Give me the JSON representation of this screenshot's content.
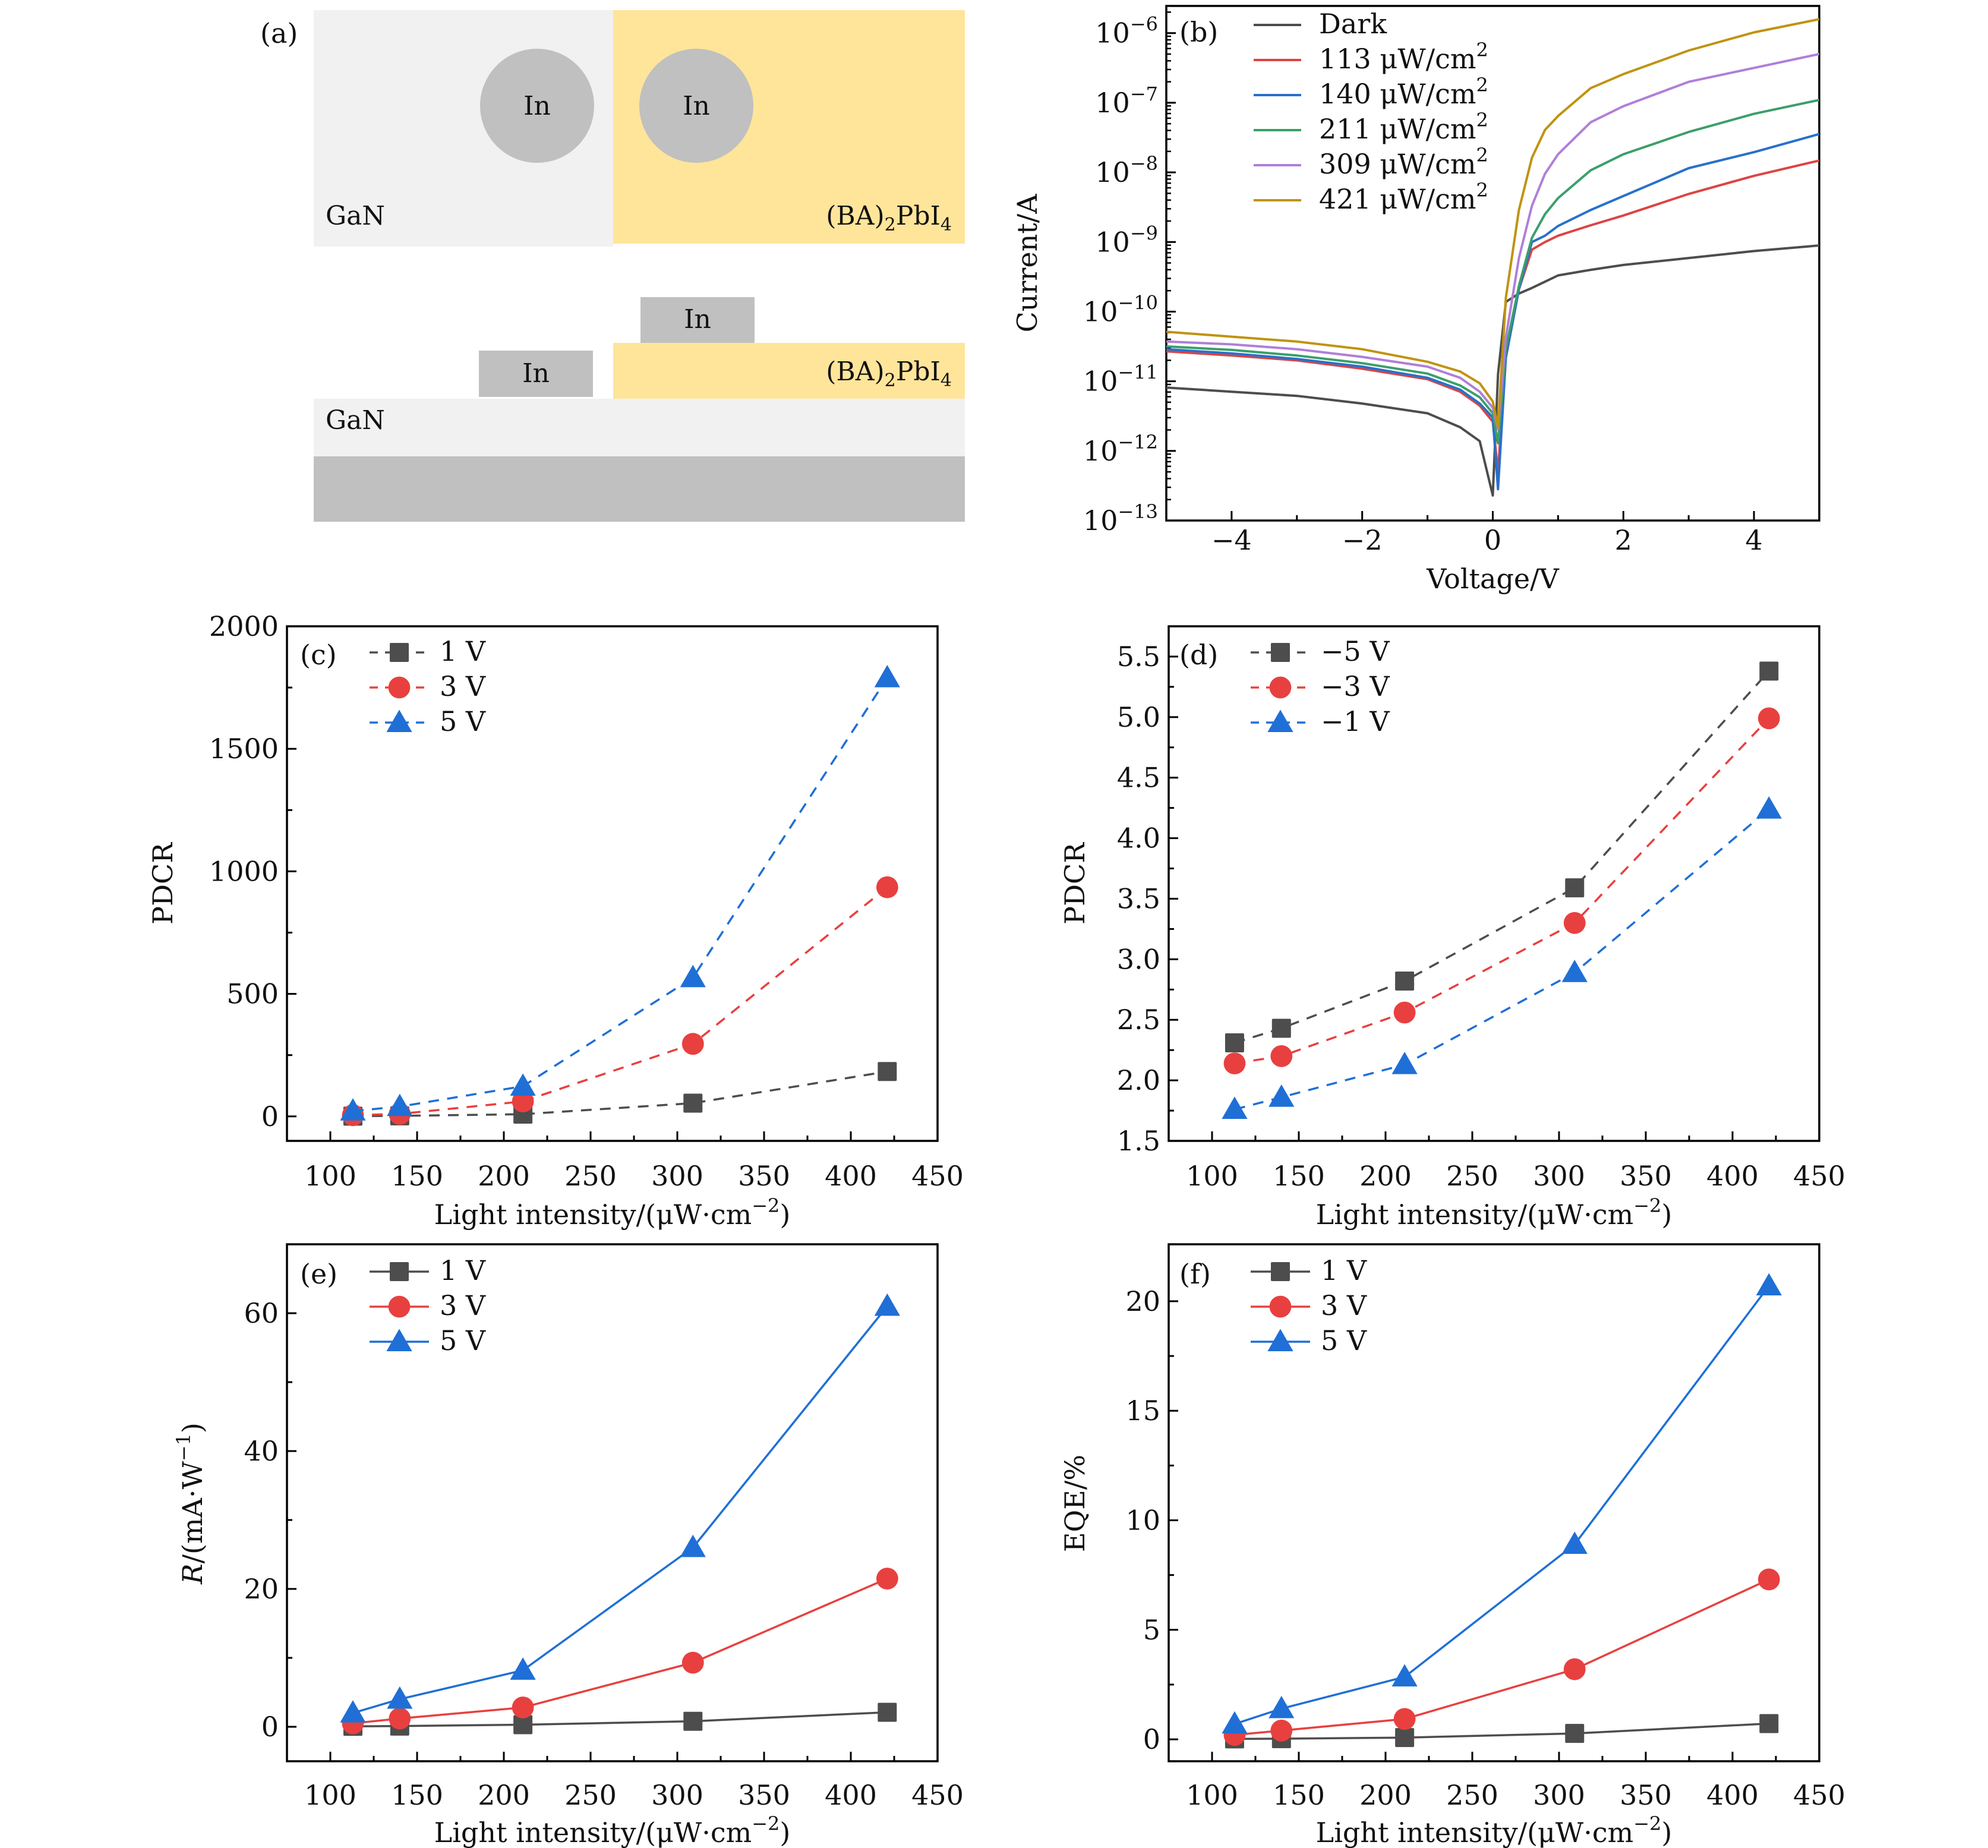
{
  "figure": {
    "panel_a": {
      "label": "(a)",
      "top_view": {
        "substrate_label": "GaN",
        "film_label": "(BA)",
        "film_sub": "2",
        "film_label2": "PbI",
        "film_sub2": "4",
        "electrode_labels": [
          "In",
          "In"
        ]
      },
      "side_view": {
        "substrate_label": "GaN",
        "film_label": "(BA)",
        "film_sub": "2",
        "film_label2": "PbI",
        "film_sub2": "4",
        "electrode_labels": [
          "In",
          "In"
        ]
      },
      "colors": {
        "gan": "#f1f1f1",
        "perovskite": "#ffe59a",
        "indium": "#c0c0c0",
        "base": "#c0c0c0"
      }
    }
  },
  "chart_data": [
    {
      "id": "b",
      "label": "(b)",
      "type": "line",
      "xlabel": "Voltage/V",
      "ylabel": "Current/A",
      "yscale": "log",
      "xlim": [
        -5,
        5
      ],
      "ylim_log10": [
        -13,
        -5.61
      ],
      "xticks": [
        -4,
        -2,
        0,
        2,
        4
      ],
      "xtick_labels": [
        "−4",
        "−2",
        "0",
        "2",
        "4"
      ],
      "yticks_log10": [
        -13,
        -12,
        -11,
        -10,
        -9,
        -8,
        -7,
        -6
      ],
      "ytick_labels": [
        {
          "base": "10",
          "exp": "−13"
        },
        {
          "base": "10",
          "exp": "−12"
        },
        {
          "base": "10",
          "exp": "−11"
        },
        {
          "base": "10",
          "exp": "−10"
        },
        {
          "base": "10",
          "exp": "−9"
        },
        {
          "base": "10",
          "exp": "−8"
        },
        {
          "base": "10",
          "exp": "−7"
        },
        {
          "base": "10",
          "exp": "−6"
        }
      ],
      "legend_position": "top-left",
      "x": [
        -5,
        -4,
        -3,
        -2,
        -1,
        -0.5,
        -0.2,
        0,
        0.08,
        0.2,
        0.4,
        0.6,
        0.8,
        1,
        1.5,
        2,
        3,
        4,
        5
      ],
      "series": [
        {
          "name": "Dark",
          "unit": "",
          "color": "#4d4d4d",
          "log10_current": [
            -11.09,
            -11.15,
            -11.21,
            -11.32,
            -11.46,
            -11.66,
            -11.86,
            -12.64,
            -10.9,
            -9.86,
            -9.74,
            -9.66,
            -9.57,
            -9.48,
            -9.4,
            -9.33,
            -9.23,
            -9.13,
            -9.05
          ]
        },
        {
          "name": "113 μW/cm",
          "unit": "2",
          "color": "#dd4444",
          "log10_current": [
            -10.57,
            -10.63,
            -10.7,
            -10.82,
            -10.97,
            -11.15,
            -11.35,
            -11.58,
            -12.3,
            -10.66,
            -9.68,
            -9.11,
            -9.0,
            -8.91,
            -8.76,
            -8.62,
            -8.31,
            -8.05,
            -7.83
          ]
        },
        {
          "name": "140 μW/cm",
          "unit": "2",
          "color": "#2870cc",
          "log10_current": [
            -10.54,
            -10.6,
            -10.68,
            -10.79,
            -10.95,
            -11.12,
            -11.32,
            -11.52,
            -12.55,
            -10.66,
            -9.68,
            -9.0,
            -8.91,
            -8.77,
            -8.54,
            -8.34,
            -7.94,
            -7.71,
            -7.45
          ]
        },
        {
          "name": "211 μW/cm",
          "unit": "2",
          "color": "#3a9f6a",
          "log10_current": [
            -10.5,
            -10.55,
            -10.63,
            -10.74,
            -10.89,
            -11.06,
            -11.23,
            -11.46,
            -11.89,
            -10.54,
            -9.63,
            -8.94,
            -8.6,
            -8.37,
            -7.97,
            -7.74,
            -7.42,
            -7.16,
            -6.96
          ]
        },
        {
          "name": "309 μW/cm",
          "unit": "2",
          "color": "#b07fd8",
          "log10_current": [
            -10.43,
            -10.47,
            -10.54,
            -10.65,
            -10.79,
            -10.95,
            -11.15,
            -11.38,
            -11.69,
            -10.37,
            -9.23,
            -8.48,
            -8.02,
            -7.74,
            -7.28,
            -7.05,
            -6.7,
            -6.5,
            -6.3
          ]
        },
        {
          "name": "421 μW/cm",
          "unit": "2",
          "color": "#c0930f",
          "log10_current": [
            -10.29,
            -10.36,
            -10.43,
            -10.54,
            -10.72,
            -10.86,
            -11.03,
            -11.29,
            -11.66,
            -9.8,
            -8.54,
            -7.79,
            -7.39,
            -7.19,
            -6.79,
            -6.59,
            -6.25,
            -5.99,
            -5.8
          ]
        }
      ]
    },
    {
      "id": "c",
      "label": "(c)",
      "type": "line",
      "line_style": "dashed",
      "xlabel": "Light intensity/(μW·cm",
      "xlabel_sup": "−2",
      "xlabel_end": ")",
      "ylabel": "PDCR",
      "xlim": [
        75,
        450
      ],
      "ylim": [
        -100,
        2000
      ],
      "xticks": [
        100,
        150,
        200,
        250,
        300,
        350,
        400,
        450
      ],
      "yticks": [
        0,
        500,
        1000,
        1500,
        2000
      ],
      "legend_position": "top-left",
      "x": [
        113,
        140,
        211,
        309,
        421
      ],
      "series": [
        {
          "name": "1 V",
          "marker": "square",
          "color": "#4d4d4d",
          "values": [
            1,
            2,
            9,
            54,
            183
          ]
        },
        {
          "name": "3 V",
          "marker": "circle",
          "color": "#e8403f",
          "values": [
            5,
            10,
            61,
            296,
            935
          ]
        },
        {
          "name": "5 V",
          "marker": "triangle",
          "color": "#1f6fd6",
          "values": [
            22,
            40,
            123,
            566,
            1790
          ]
        }
      ]
    },
    {
      "id": "d",
      "label": "(d)",
      "type": "line",
      "line_style": "dashed",
      "xlabel": "Light intensity/(μW·cm",
      "xlabel_sup": "−2",
      "xlabel_end": ")",
      "ylabel": "PDCR",
      "xlim": [
        75,
        450
      ],
      "ylim": [
        1.5,
        5.75
      ],
      "xticks": [
        100,
        150,
        200,
        250,
        300,
        350,
        400,
        450
      ],
      "yticks": [
        1.5,
        2.0,
        2.5,
        3.0,
        3.5,
        4.0,
        4.5,
        5.0,
        5.5
      ],
      "ytick_labels": [
        "1.5",
        "2.0",
        "2.5",
        "3.0",
        "3.5",
        "4.0",
        "4.5",
        "5.0",
        "5.5"
      ],
      "legend_position": "top-left",
      "x": [
        113,
        140,
        211,
        309,
        421
      ],
      "series": [
        {
          "name": "−5 V",
          "marker": "square",
          "color": "#4d4d4d",
          "values": [
            2.31,
            2.43,
            2.82,
            3.59,
            5.38
          ]
        },
        {
          "name": "−3 V",
          "marker": "circle",
          "color": "#e8403f",
          "values": [
            2.14,
            2.2,
            2.56,
            3.3,
            4.99
          ]
        },
        {
          "name": "−1 V",
          "marker": "triangle",
          "color": "#1f6fd6",
          "values": [
            1.76,
            1.86,
            2.13,
            2.89,
            4.24
          ]
        }
      ]
    },
    {
      "id": "e",
      "label": "(e)",
      "type": "line",
      "line_style": "solid",
      "xlabel": "Light intensity/(μW·cm",
      "xlabel_sup": "−2",
      "xlabel_end": ")",
      "ylabel_italic": "R",
      "ylabel": "/(mA·W",
      "ylabel_sup": "−1",
      "ylabel_end": ")",
      "xlim": [
        75,
        450
      ],
      "ylim": [
        -5,
        70
      ],
      "xticks": [
        100,
        150,
        200,
        250,
        300,
        350,
        400,
        450
      ],
      "yticks": [
        0,
        20,
        40,
        60
      ],
      "legend_position": "top-left",
      "x": [
        113,
        140,
        211,
        309,
        421
      ],
      "series": [
        {
          "name": "1 V",
          "marker": "square",
          "color": "#4d4d4d",
          "values": [
            0.06,
            0.1,
            0.3,
            0.8,
            2.1
          ]
        },
        {
          "name": "3 V",
          "marker": "circle",
          "color": "#e8403f",
          "values": [
            0.5,
            1.2,
            2.8,
            9.3,
            21.5
          ]
        },
        {
          "name": "5 V",
          "marker": "triangle",
          "color": "#1f6fd6",
          "values": [
            2.0,
            4.0,
            8.2,
            26,
            61
          ]
        }
      ]
    },
    {
      "id": "f",
      "label": "(f)",
      "type": "line",
      "line_style": "solid",
      "xlabel": "Light intensity/(μW·cm",
      "xlabel_sup": "−2",
      "xlabel_end": ")",
      "ylabel": "EQE/%",
      "xlim": [
        75,
        450
      ],
      "ylim": [
        -1,
        22.6
      ],
      "xticks": [
        100,
        150,
        200,
        250,
        300,
        350,
        400,
        450
      ],
      "yticks": [
        0,
        5,
        10,
        15,
        20
      ],
      "legend_position": "top-left",
      "x": [
        113,
        140,
        211,
        309,
        421
      ],
      "series": [
        {
          "name": "1 V",
          "marker": "square",
          "color": "#4d4d4d",
          "values": [
            0.02,
            0.03,
            0.08,
            0.27,
            0.72
          ]
        },
        {
          "name": "3 V",
          "marker": "circle",
          "color": "#e8403f",
          "values": [
            0.2,
            0.4,
            0.93,
            3.2,
            7.3
          ]
        },
        {
          "name": "5 V",
          "marker": "triangle",
          "color": "#1f6fd6",
          "values": [
            0.7,
            1.4,
            2.85,
            8.9,
            20.7
          ]
        }
      ]
    }
  ]
}
